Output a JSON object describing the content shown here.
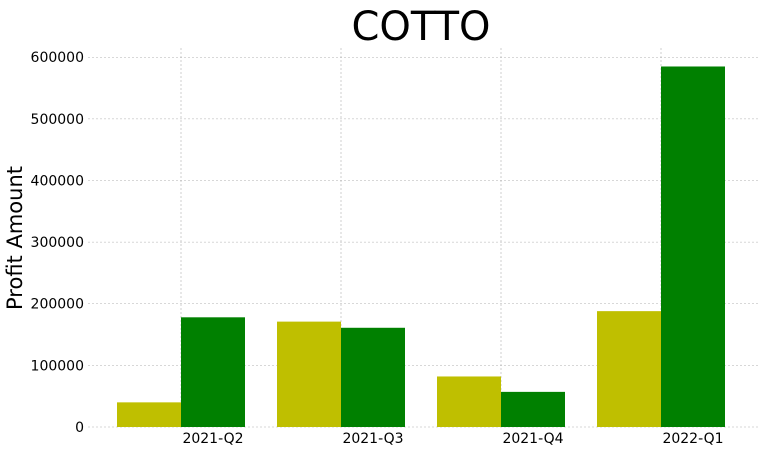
{
  "chart_data": {
    "type": "bar",
    "title": "COTTO",
    "xlabel": "",
    "ylabel": "Profit Amount",
    "categories": [
      "2021-Q2",
      "2021-Q3",
      "2021-Q4",
      "2022-Q1"
    ],
    "series": [
      {
        "color": "#bfbf00",
        "values": [
          40000,
          171000,
          82000,
          188000
        ]
      },
      {
        "color": "#008000",
        "values": [
          178000,
          161000,
          57000,
          585000
        ]
      }
    ],
    "yticks": [
      0,
      100000,
      200000,
      300000,
      400000,
      500000,
      600000
    ],
    "ytick_labels": [
      "0",
      "100000",
      "200000",
      "300000",
      "400000",
      "500000",
      "600000"
    ],
    "ylim": [
      0,
      615000
    ],
    "grid": true,
    "legend": "none"
  }
}
